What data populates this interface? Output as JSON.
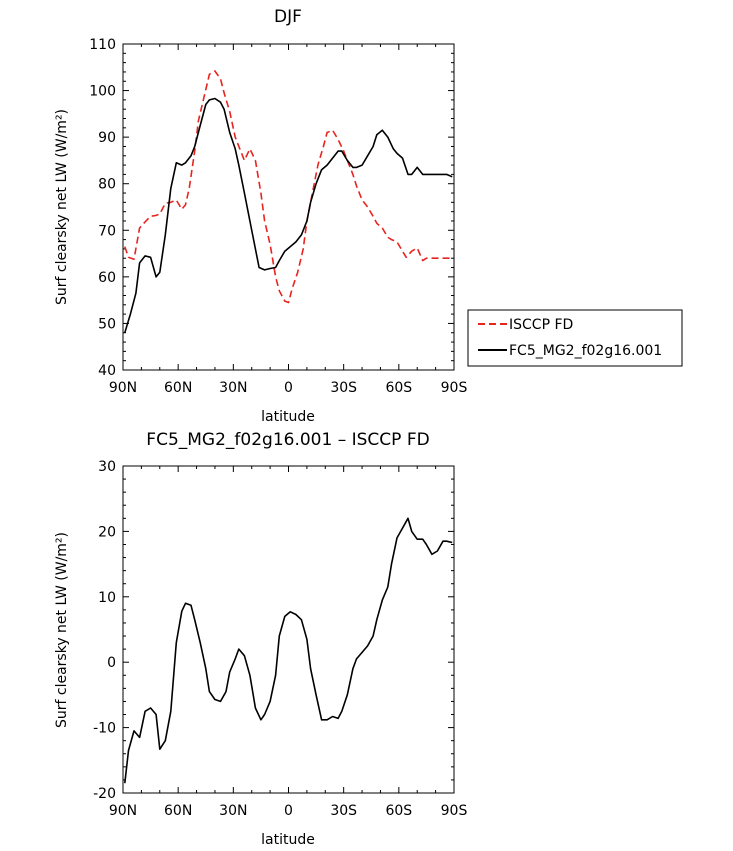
{
  "chart_data": [
    {
      "type": "line",
      "title": "DJF",
      "xlabel": "latitude",
      "ylabel": "Surf clearsky net LW (W/m²)",
      "ylim": [
        40,
        110
      ],
      "yticks": [
        40,
        50,
        60,
        70,
        80,
        90,
        100,
        110
      ],
      "xlim": [
        -90,
        90
      ],
      "xticks": [
        {
          "value": -90,
          "label": "90N"
        },
        {
          "value": -60,
          "label": "60N"
        },
        {
          "value": -30,
          "label": "30N"
        },
        {
          "value": 0,
          "label": "0"
        },
        {
          "value": 30,
          "label": "30S"
        },
        {
          "value": 60,
          "label": "60S"
        },
        {
          "value": 90,
          "label": "90S"
        }
      ],
      "legend_position": "right",
      "series": [
        {
          "name": "ISCCP FD",
          "color": "#e8241f",
          "dash": "dashed",
          "x": [
            -89,
            -87,
            -84,
            -81,
            -78,
            -75,
            -72,
            -70,
            -67,
            -64,
            -61,
            -58,
            -56,
            -54,
            -51,
            -49,
            -46,
            -43,
            -40,
            -37,
            -35,
            -32,
            -29,
            -26,
            -24,
            -21,
            -18,
            -15,
            -13,
            -10,
            -7,
            -5,
            -2,
            0,
            2,
            5,
            8,
            10,
            13,
            16,
            19,
            21,
            24,
            27,
            30,
            32,
            35,
            37,
            40,
            43,
            46,
            48,
            51,
            54,
            56,
            59,
            62,
            64,
            67,
            70,
            73,
            75,
            78,
            81,
            84,
            86,
            89
          ],
          "y": [
            66.5,
            64.2,
            63.8,
            70.5,
            71.8,
            73.0,
            73.2,
            73.5,
            75.8,
            76.0,
            76.5,
            74.5,
            75.5,
            79.0,
            87.0,
            93.5,
            98.5,
            103.5,
            104.2,
            102.5,
            99.5,
            95.5,
            90.0,
            87.0,
            85.0,
            87.5,
            85.0,
            78.0,
            72.0,
            67.0,
            60.0,
            57.0,
            54.8,
            54.5,
            57.5,
            61.0,
            66.0,
            72.0,
            78.0,
            84.0,
            88.0,
            91.0,
            91.5,
            89.5,
            87.0,
            85.0,
            82.0,
            79.5,
            76.5,
            75.0,
            73.0,
            71.5,
            70.5,
            68.5,
            68.0,
            67.5,
            65.5,
            64.2,
            65.5,
            66.2,
            63.5,
            64.0,
            64.0,
            64.0,
            64.0,
            64.0,
            64.0
          ]
        },
        {
          "name": "FC5_MG2_f02g16.001",
          "color": "#000000",
          "dash": "solid",
          "x": [
            -89,
            -86,
            -83,
            -81,
            -78,
            -75,
            -72,
            -70,
            -67,
            -64,
            -61,
            -58,
            -56,
            -53,
            -51,
            -48,
            -45,
            -43,
            -40,
            -37,
            -35,
            -32,
            -29,
            -27,
            -24,
            -21,
            -18,
            -16,
            -13,
            -10,
            -7,
            -5,
            -2,
            1,
            4,
            7,
            10,
            12,
            15,
            18,
            21,
            24,
            27,
            29,
            32,
            35,
            37,
            40,
            43,
            46,
            48,
            51,
            54,
            57,
            59,
            62,
            65,
            67,
            70,
            73,
            76,
            78,
            81,
            84,
            86,
            89
          ],
          "y": [
            48.0,
            52.0,
            56.5,
            63.0,
            64.5,
            64.2,
            60.0,
            61.0,
            69.0,
            79.0,
            84.5,
            84.0,
            84.5,
            86.0,
            88.0,
            92.5,
            97.0,
            98.0,
            98.3,
            97.5,
            96.0,
            91.0,
            87.5,
            84.0,
            78.0,
            72.0,
            66.0,
            62.0,
            61.5,
            61.8,
            62.0,
            63.5,
            65.5,
            66.5,
            67.5,
            69.0,
            72.0,
            76.0,
            80.0,
            83.0,
            84.0,
            85.5,
            87.0,
            87.0,
            85.0,
            83.5,
            83.5,
            84.0,
            86.0,
            88.0,
            90.5,
            91.5,
            90.0,
            87.5,
            86.5,
            85.5,
            82.0,
            82.0,
            83.5,
            82.0,
            82.0,
            82.0,
            82.0,
            82.0,
            82.0,
            81.5
          ]
        }
      ]
    },
    {
      "type": "line",
      "title": "FC5_MG2_f02g16.001 – ISCCP FD",
      "xlabel": "latitude",
      "ylabel": "Surf clearsky net LW (W/m²)",
      "ylim": [
        -20,
        30
      ],
      "yticks": [
        -20,
        -10,
        0,
        10,
        20,
        30
      ],
      "xlim": [
        -90,
        90
      ],
      "xticks": [
        {
          "value": -90,
          "label": "90N"
        },
        {
          "value": -60,
          "label": "60N"
        },
        {
          "value": -30,
          "label": "30N"
        },
        {
          "value": 0,
          "label": "0"
        },
        {
          "value": 30,
          "label": "30S"
        },
        {
          "value": 60,
          "label": "60S"
        },
        {
          "value": 90,
          "label": "90S"
        }
      ],
      "series": [
        {
          "color": "#000000",
          "dash": "solid",
          "x": [
            -89,
            -87,
            -84,
            -81,
            -78,
            -75,
            -72,
            -70,
            -67,
            -64,
            -61,
            -58,
            -56,
            -53,
            -51,
            -48,
            -45,
            -43,
            -40,
            -37,
            -34,
            -32,
            -29,
            -27,
            -24,
            -21,
            -18,
            -15,
            -13,
            -10,
            -7,
            -5,
            -2,
            1,
            4,
            7,
            10,
            12,
            15,
            18,
            21,
            24,
            27,
            29,
            32,
            35,
            37,
            40,
            43,
            46,
            48,
            51,
            54,
            56,
            59,
            62,
            65,
            67,
            70,
            73,
            75,
            78,
            81,
            84,
            86,
            89
          ],
          "y": [
            -18.5,
            -13.5,
            -10.5,
            -11.5,
            -7.5,
            -7.0,
            -8.0,
            -13.3,
            -12.0,
            -7.5,
            3.0,
            7.8,
            9.0,
            8.7,
            6.5,
            3.0,
            -1.0,
            -4.5,
            -5.7,
            -6.0,
            -4.5,
            -1.5,
            0.5,
            2.0,
            1.0,
            -2.0,
            -7.0,
            -8.8,
            -8.0,
            -6.0,
            -2.0,
            4.0,
            7.0,
            7.7,
            7.3,
            6.5,
            3.5,
            -1.0,
            -5.0,
            -8.8,
            -8.8,
            -8.3,
            -8.6,
            -7.5,
            -5.0,
            -1.0,
            0.5,
            1.5,
            2.5,
            4.0,
            6.5,
            9.5,
            11.5,
            15.0,
            19.0,
            20.5,
            22.0,
            20.0,
            18.8,
            18.8,
            18.0,
            16.5,
            17.0,
            18.5,
            18.5,
            18.3
          ]
        }
      ]
    }
  ]
}
